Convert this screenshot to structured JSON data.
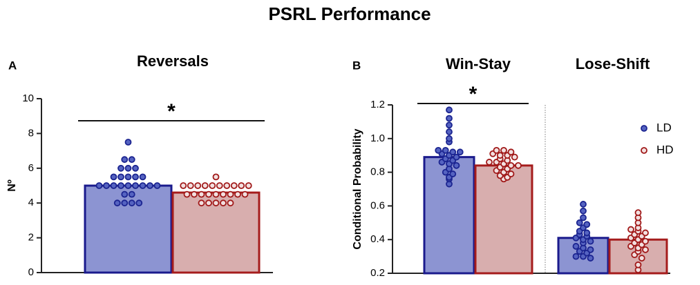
{
  "title": "PSRL Performance",
  "chart_data": [
    {
      "type": "bar",
      "label": "A",
      "title": "Reversals",
      "ylabel": "Nº",
      "ylim": [
        0,
        10
      ],
      "yticks": [
        0,
        2,
        4,
        6,
        8,
        10
      ],
      "significance": [
        "*"
      ],
      "series": [
        {
          "color": "#8c94d2",
          "values": [
            5.0
          ],
          "points": [
            [
              7.5,
              6.5,
              6.5,
              6,
              6,
              6,
              5.5,
              5.5,
              5.5,
              5.5,
              5.5,
              5,
              5,
              5,
              5,
              5,
              5,
              5,
              5,
              5,
              4.5,
              4.5,
              4,
              4,
              4,
              4
            ]
          ]
        },
        {
          "color": "#d8aeae",
          "values": [
            4.6
          ],
          "points": [
            [
              5.5,
              5,
              5,
              5,
              5,
              5,
              5,
              5,
              5,
              5,
              5,
              4.5,
              4.5,
              4.5,
              4.5,
              4.5,
              4.5,
              4.5,
              4.5,
              4.5,
              4,
              4,
              4,
              4,
              4
            ]
          ]
        }
      ]
    },
    {
      "type": "bar",
      "label": "B",
      "categories": [
        "Win-Stay",
        "Lose-Shift"
      ],
      "ylabel": "Conditional Probability",
      "ylim": [
        0.2,
        1.2
      ],
      "yticks": [
        0.2,
        0.4,
        0.6,
        0.8,
        {
          "value": 1,
          "label": "1.0"
        },
        1.2
      ],
      "significance": [
        "*",
        null
      ],
      "legend": "upper right",
      "series": [
        {
          "name": "LD",
          "color": "#8c94d2",
          "values": [
            0.89,
            0.41
          ],
          "points": [
            [
              1.17,
              1.12,
              1.08,
              1.04,
              1.0,
              0.98,
              0.93,
              0.93,
              0.92,
              0.92,
              0.91,
              0.9,
              0.89,
              0.88,
              0.87,
              0.86,
              0.85,
              0.84,
              0.82,
              0.8,
              0.79,
              0.77,
              0.76,
              0.73
            ],
            [
              0.61,
              0.57,
              0.53,
              0.5,
              0.49,
              0.47,
              0.45,
              0.44,
              0.43,
              0.42,
              0.41,
              0.4,
              0.39,
              0.38,
              0.36,
              0.35,
              0.34,
              0.33,
              0.32,
              0.3,
              0.3,
              0.29
            ]
          ]
        },
        {
          "name": "HD",
          "color": "#d8aeae",
          "values": [
            0.84,
            0.4
          ],
          "points": [
            [
              0.93,
              0.93,
              0.92,
              0.91,
              0.9,
              0.9,
              0.89,
              0.88,
              0.87,
              0.86,
              0.86,
              0.85,
              0.84,
              0.84,
              0.83,
              0.82,
              0.81,
              0.8,
              0.79,
              0.78,
              0.77,
              0.76
            ],
            [
              0.56,
              0.53,
              0.5,
              0.47,
              0.46,
              0.45,
              0.44,
              0.43,
              0.42,
              0.41,
              0.4,
              0.39,
              0.38,
              0.37,
              0.36,
              0.35,
              0.34,
              0.33,
              0.31,
              0.29,
              0.25,
              0.22
            ]
          ]
        }
      ]
    }
  ]
}
